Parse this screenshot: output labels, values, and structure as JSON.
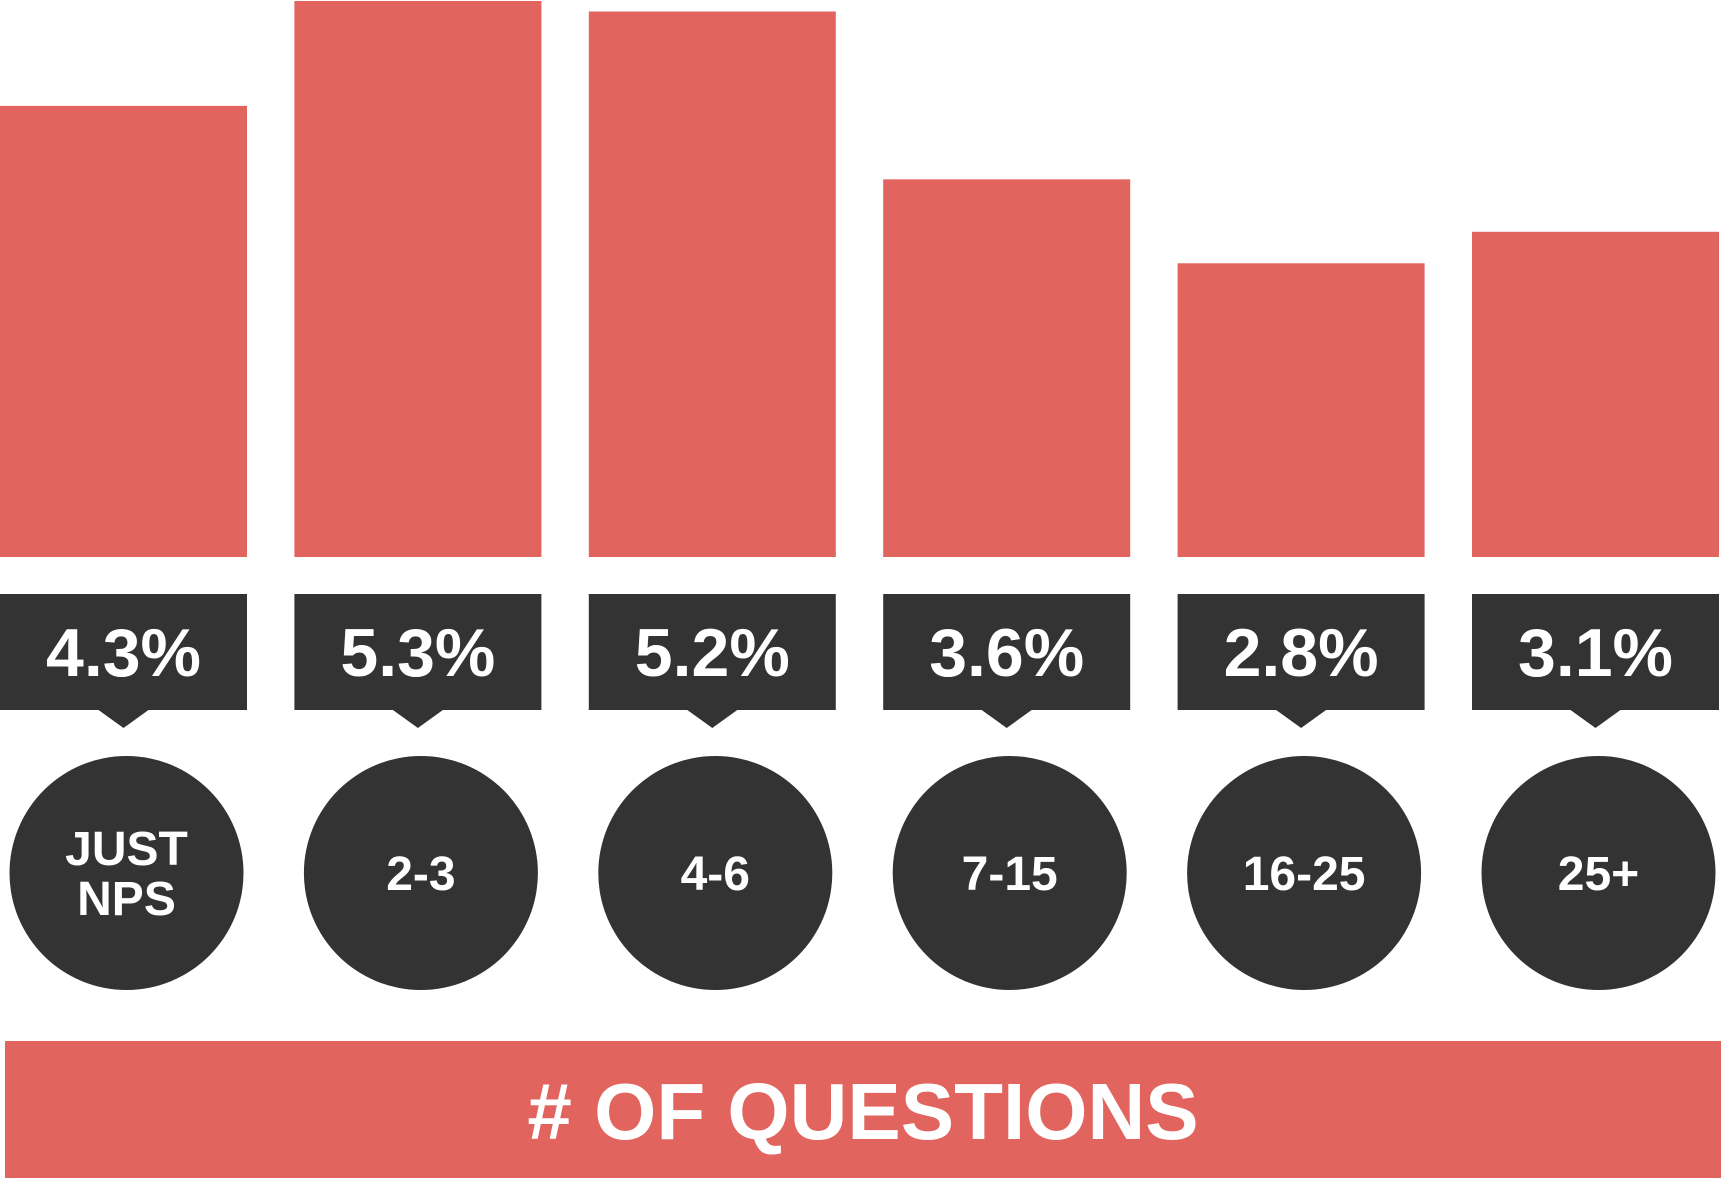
{
  "chart_data": {
    "type": "bar",
    "categories": [
      "JUST NPS",
      "2-3",
      "4-6",
      "7-15",
      "16-25",
      "25+"
    ],
    "values": [
      4.3,
      5.3,
      5.2,
      3.6,
      2.8,
      3.1
    ],
    "value_labels": [
      "4.3%",
      "5.3%",
      "5.2%",
      "3.6%",
      "2.8%",
      "3.1%"
    ],
    "xlabel": "# OF QUESTIONS",
    "ylim": [
      0,
      5.3
    ],
    "grid": false,
    "legend": "none",
    "colors": {
      "bar": "#e2645e",
      "label_box": "#333333",
      "category_circle": "#333333",
      "text": "#ffffff",
      "background": "#ffffff"
    }
  }
}
